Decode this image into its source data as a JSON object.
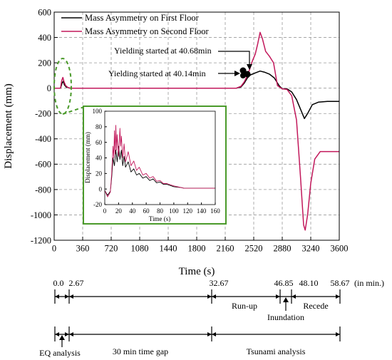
{
  "chart_data": {
    "type": "line",
    "ylabel": "Displacement (mm)",
    "xlabel": "Time (s)",
    "xlim": [
      0,
      3600
    ],
    "ylim": [
      -1200,
      600
    ],
    "x_ticks": [
      "0",
      "360",
      "720",
      "1080",
      "1440",
      "1800",
      "2160",
      "2520",
      "2880",
      "3240",
      "3600"
    ],
    "y_ticks": [
      "600",
      "400",
      "200",
      "0",
      "-200",
      "-400",
      "-600",
      "-800",
      "-1000",
      "-1200"
    ],
    "grid": true,
    "legend_position": "top-left",
    "series": [
      {
        "name": "Mass Asymmetry on First Floor",
        "color": "#000000",
        "points": [
          [
            0,
            0
          ],
          [
            80,
            0
          ],
          [
            100,
            40
          ],
          [
            115,
            55
          ],
          [
            130,
            25
          ],
          [
            150,
            10
          ],
          [
            180,
            3
          ],
          [
            210,
            0
          ],
          [
            2200,
            0
          ],
          [
            2300,
            0
          ],
          [
            2360,
            10
          ],
          [
            2400,
            40
          ],
          [
            2440,
            80
          ],
          [
            2480,
            105
          ],
          [
            2520,
            115
          ],
          [
            2560,
            125
          ],
          [
            2600,
            135
          ],
          [
            2660,
            125
          ],
          [
            2720,
            110
          ],
          [
            2780,
            80
          ],
          [
            2840,
            20
          ],
          [
            2880,
            -5
          ],
          [
            2940,
            -5
          ],
          [
            3000,
            -30
          ],
          [
            3060,
            -90
          ],
          [
            3120,
            -180
          ],
          [
            3160,
            -240
          ],
          [
            3200,
            -200
          ],
          [
            3260,
            -130
          ],
          [
            3340,
            -110
          ],
          [
            3450,
            -105
          ],
          [
            3600,
            -105
          ]
        ]
      },
      {
        "name": "Mass Asymmetry on Second Floor",
        "color": "#c2185b",
        "points": [
          [
            0,
            0
          ],
          [
            80,
            0
          ],
          [
            95,
            60
          ],
          [
            110,
            85
          ],
          [
            125,
            50
          ],
          [
            145,
            20
          ],
          [
            175,
            5
          ],
          [
            210,
            0
          ],
          [
            2200,
            0
          ],
          [
            2300,
            0
          ],
          [
            2360,
            15
          ],
          [
            2400,
            50
          ],
          [
            2440,
            100
          ],
          [
            2470,
            150
          ],
          [
            2500,
            210
          ],
          [
            2540,
            270
          ],
          [
            2570,
            350
          ],
          [
            2600,
            440
          ],
          [
            2630,
            390
          ],
          [
            2670,
            290
          ],
          [
            2720,
            250
          ],
          [
            2770,
            200
          ],
          [
            2820,
            20
          ],
          [
            2880,
            -5
          ],
          [
            2940,
            -10
          ],
          [
            3000,
            -60
          ],
          [
            3060,
            -250
          ],
          [
            3110,
            -700
          ],
          [
            3150,
            -1080
          ],
          [
            3170,
            -1120
          ],
          [
            3200,
            -1000
          ],
          [
            3240,
            -750
          ],
          [
            3290,
            -560
          ],
          [
            3360,
            -500
          ],
          [
            3450,
            -500
          ],
          [
            3600,
            -500
          ]
        ]
      }
    ],
    "annotations": [
      "Yielding started at 40.68min",
      "Yielding started at 40.14min"
    ],
    "inset": {
      "ylabel": "Displacement (mm)",
      "xlabel": "Time (s)",
      "xlim": [
        0,
        160
      ],
      "ylim": [
        -20,
        100
      ],
      "x_ticks": [
        "0",
        "20",
        "40",
        "60",
        "80",
        "100",
        "120",
        "140",
        "160"
      ],
      "y_ticks": [
        "100",
        "80",
        "60",
        "40",
        "20",
        "0",
        "-20"
      ],
      "series": [
        {
          "color": "#000000",
          "points": [
            [
              0,
              -2
            ],
            [
              4,
              -8
            ],
            [
              8,
              -3
            ],
            [
              10,
              15
            ],
            [
              12,
              40
            ],
            [
              14,
              30
            ],
            [
              16,
              50
            ],
            [
              18,
              35
            ],
            [
              20,
              55
            ],
            [
              22,
              38
            ],
            [
              24,
              50
            ],
            [
              26,
              30
            ],
            [
              28,
              42
            ],
            [
              30,
              28
            ],
            [
              34,
              35
            ],
            [
              38,
              22
            ],
            [
              42,
              26
            ],
            [
              46,
              18
            ],
            [
              50,
              20
            ],
            [
              55,
              14
            ],
            [
              60,
              16
            ],
            [
              65,
              11
            ],
            [
              70,
              13
            ],
            [
              75,
              8
            ],
            [
              80,
              9
            ],
            [
              85,
              6
            ],
            [
              90,
              6
            ],
            [
              100,
              3
            ],
            [
              110,
              2
            ],
            [
              115,
              1
            ],
            [
              120,
              1
            ],
            [
              160,
              1
            ]
          ]
        },
        {
          "color": "#c2185b",
          "points": [
            [
              0,
              -2
            ],
            [
              4,
              -10
            ],
            [
              8,
              -4
            ],
            [
              10,
              20
            ],
            [
              12,
              55
            ],
            [
              13,
              40
            ],
            [
              14,
              75
            ],
            [
              15,
              45
            ],
            [
              16,
              82
            ],
            [
              17,
              50
            ],
            [
              18,
              70
            ],
            [
              20,
              42
            ],
            [
              22,
              78
            ],
            [
              23,
              55
            ],
            [
              24,
              68
            ],
            [
              26,
              40
            ],
            [
              28,
              58
            ],
            [
              30,
              35
            ],
            [
              34,
              48
            ],
            [
              38,
              30
            ],
            [
              42,
              36
            ],
            [
              46,
              24
            ],
            [
              50,
              28
            ],
            [
              55,
              18
            ],
            [
              60,
              20
            ],
            [
              65,
              14
            ],
            [
              70,
              16
            ],
            [
              75,
              10
            ],
            [
              80,
              11
            ],
            [
              85,
              7
            ],
            [
              90,
              7
            ],
            [
              100,
              4
            ],
            [
              110,
              2
            ],
            [
              115,
              1
            ],
            [
              120,
              1
            ],
            [
              160,
              1
            ]
          ]
        }
      ]
    }
  },
  "timeline": {
    "top_labels": [
      "0.0",
      "2.67",
      "32.67",
      "46.85",
      "48.10",
      "58.67"
    ],
    "unit_label": "(in min.)",
    "phase_labels": [
      "Run-up",
      "Inundation",
      "Recede"
    ],
    "bottom_labels": [
      "EQ analysis",
      "30 min time gap",
      "Tsunami analysis"
    ]
  }
}
